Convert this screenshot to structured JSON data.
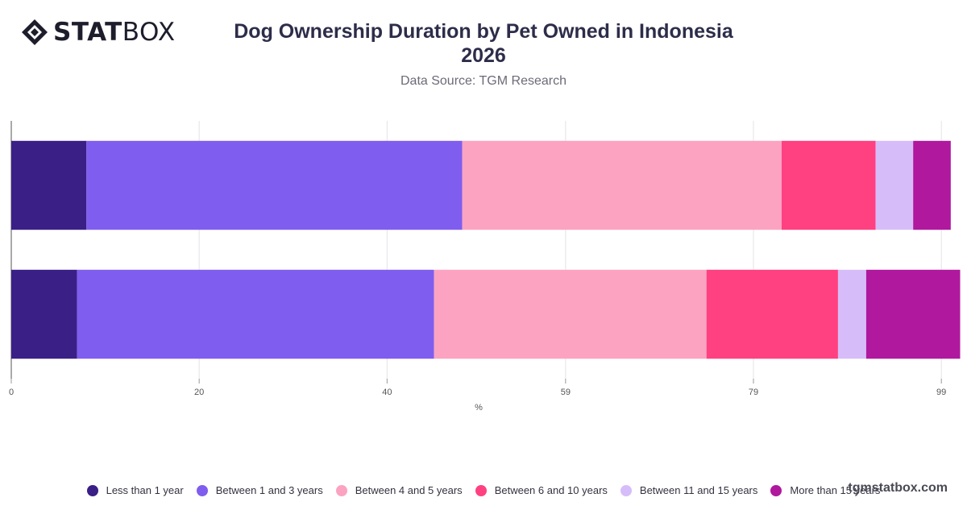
{
  "brand": {
    "logo_text_bold": "STAT",
    "logo_text_light": "BOX",
    "watermark": "tgmstatbox.com"
  },
  "header": {
    "title_line1": "Dog Ownership Duration by Pet Owned in Indonesia",
    "title_line2": "2026",
    "subtitle": "Data Source: TGM Research"
  },
  "chart_data": {
    "type": "bar",
    "orientation": "horizontal",
    "stacked": true,
    "xlabel": "%",
    "x_ticks": [
      "0",
      "20",
      "40",
      "59",
      "79",
      "99"
    ],
    "xlim": [
      0,
      99.5
    ],
    "grid": true,
    "legend_position": "bottom",
    "categories": [
      "",
      ""
    ],
    "series": [
      {
        "name": "Less than 1 year",
        "color": "#3a1f87",
        "values": [
          8,
          7
        ]
      },
      {
        "name": "Between 1 and 3 years",
        "color": "#7f5dee",
        "values": [
          40,
          38
        ]
      },
      {
        "name": "Between 4 and 5 years",
        "color": "#fca3c2",
        "values": [
          34,
          29
        ]
      },
      {
        "name": "Between 6 and 10 years",
        "color": "#ff4081",
        "values": [
          10,
          14
        ]
      },
      {
        "name": "Between 11 and 15 years",
        "color": "#d6bdf9",
        "values": [
          4,
          3
        ]
      },
      {
        "name": "More than 15 years",
        "color": "#b0189e",
        "values": [
          4,
          10
        ]
      }
    ]
  }
}
